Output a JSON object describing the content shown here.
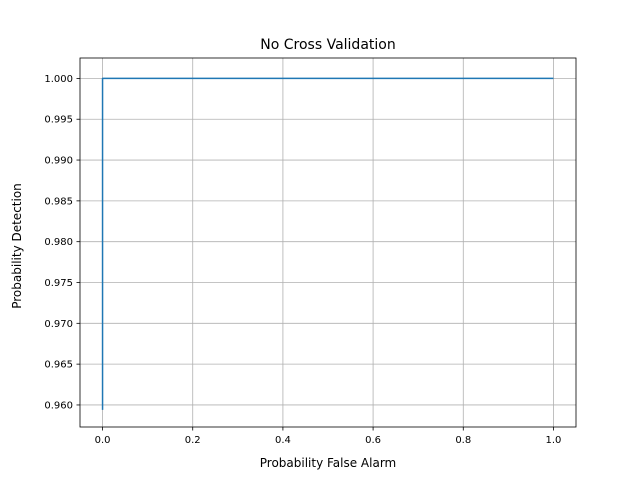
{
  "chart_data": {
    "type": "line",
    "title": "No Cross Validation",
    "xlabel": "Probability False Alarm",
    "ylabel": "Probability Detection",
    "xlim": [
      -0.05,
      1.05
    ],
    "ylim": [
      0.9573,
      1.0025
    ],
    "xticks": [
      0.0,
      0.2,
      0.4,
      0.6,
      0.8,
      1.0
    ],
    "xtick_labels": [
      "0.0",
      "0.2",
      "0.4",
      "0.6",
      "0.8",
      "1.0"
    ],
    "yticks": [
      0.96,
      0.965,
      0.97,
      0.975,
      0.98,
      0.985,
      0.99,
      0.995,
      1.0
    ],
    "ytick_labels": [
      "0.960",
      "0.965",
      "0.970",
      "0.975",
      "0.980",
      "0.985",
      "0.990",
      "0.995",
      "1.000"
    ],
    "grid": true,
    "series": [
      {
        "color": "#1f77b4",
        "x": [
          0.0,
          0.0,
          1.0
        ],
        "y": [
          0.9594,
          1.0,
          1.0
        ]
      }
    ]
  }
}
